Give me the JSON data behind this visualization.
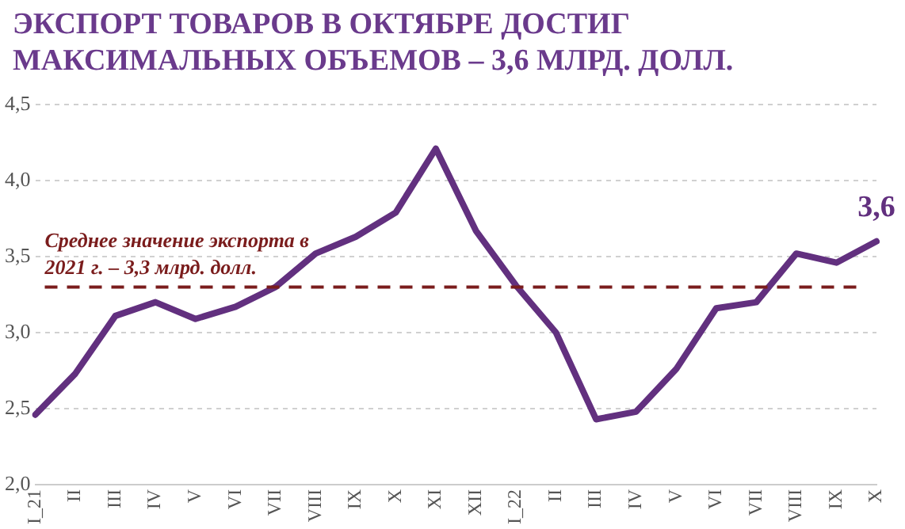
{
  "chart_data": {
    "type": "line",
    "title": "ЭКСПОРТ ТОВАРОВ В ОКТЯБРЕ ДОСТИГ МАКСИМАЛЬНЫХ ОБЪЕМОВ – 3,6 МЛРД. ДОЛЛ.",
    "categories": [
      "I_21",
      "II",
      "III",
      "IV",
      "V",
      "VI",
      "VII",
      "VIII",
      "IX",
      "X",
      "XI",
      "XII",
      "I_22",
      "II",
      "III",
      "IV",
      "V",
      "VI",
      "VII",
      "VIII",
      "IX",
      "X"
    ],
    "series": [
      {
        "color": "#62307f",
        "values": [
          2.46,
          2.73,
          3.11,
          3.2,
          3.09,
          3.17,
          3.3,
          3.52,
          3.63,
          3.79,
          4.21,
          3.67,
          3.31,
          3.0,
          2.43,
          2.48,
          2.76,
          3.16,
          3.2,
          3.52,
          3.46,
          3.6
        ],
        "value_labels": [
          null,
          null,
          null,
          null,
          null,
          null,
          null,
          null,
          null,
          null,
          null,
          null,
          null,
          null,
          null,
          null,
          null,
          null,
          null,
          null,
          null,
          "3,6"
        ]
      }
    ],
    "ylim": [
      2.0,
      4.5
    ],
    "yticks": [
      {
        "value": 2.0,
        "label": "2,0"
      },
      {
        "value": 2.5,
        "label": "2,5"
      },
      {
        "value": 3.0,
        "label": "3,0"
      },
      {
        "value": 3.5,
        "label": "3,5"
      },
      {
        "value": 4.0,
        "label": "4,0"
      },
      {
        "value": 4.5,
        "label": "4,5"
      }
    ],
    "grid": "y",
    "legend": false,
    "marker": "none",
    "line_style": "solid",
    "ref_lines": [
      {
        "axis": "y",
        "value": 3.3,
        "label": "Среднее значение экспорта в 2021 г. – 3,3 млрд. долл.",
        "color": "#7a1c1c",
        "line_style": "dashed"
      }
    ]
  }
}
